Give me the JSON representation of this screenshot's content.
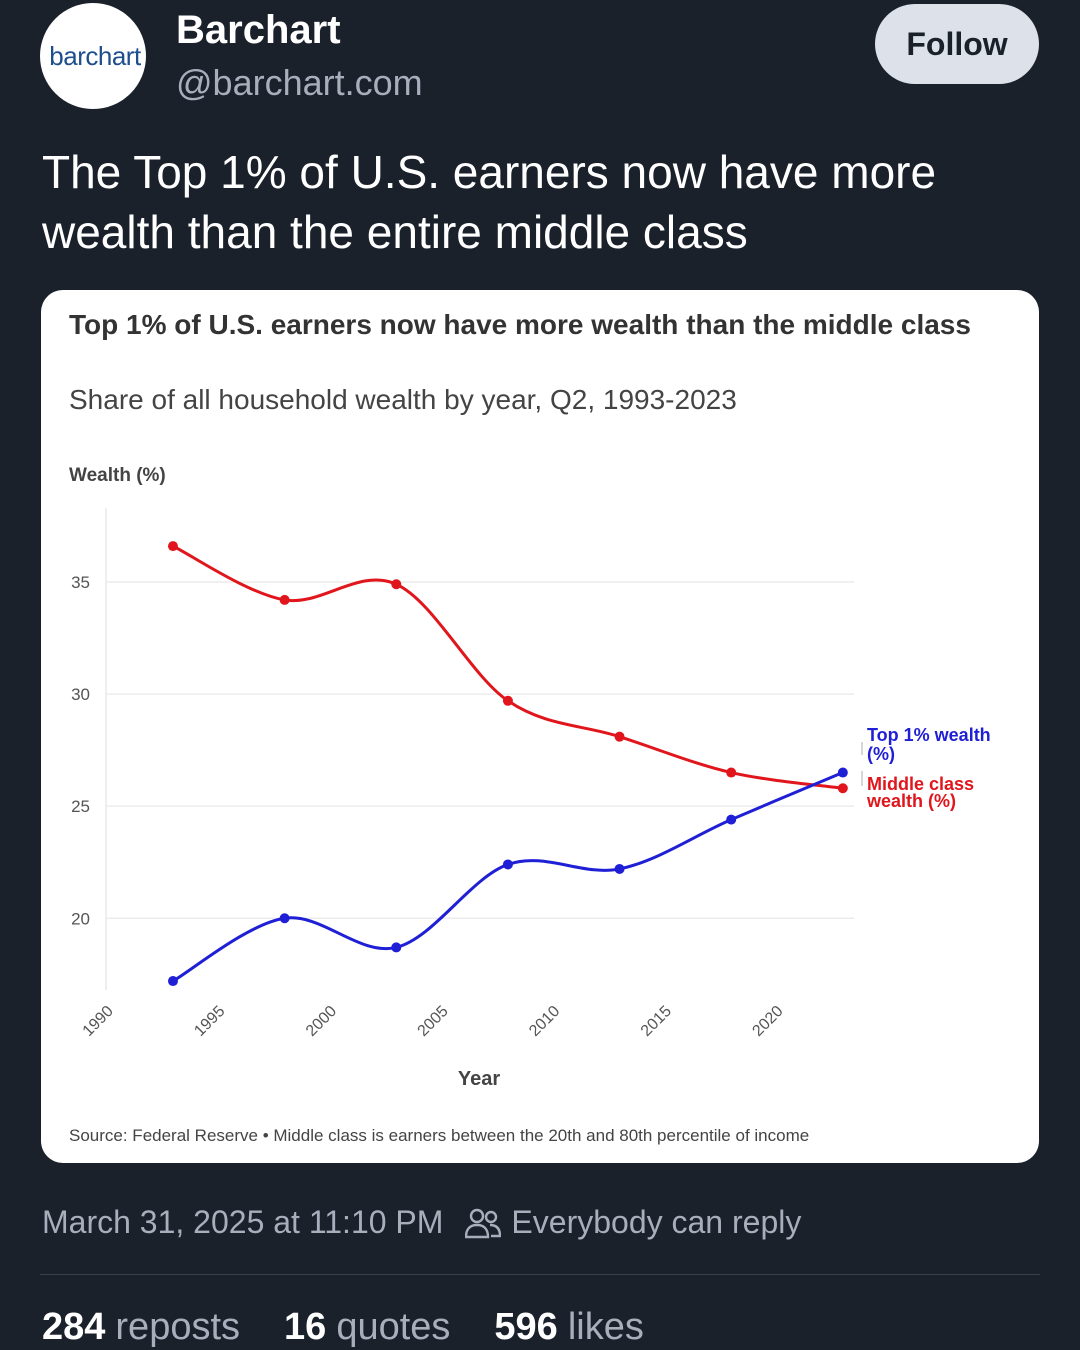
{
  "account": {
    "avatar_text": "barchart",
    "display_name": "Barchart",
    "handle": "@barchart.com",
    "follow_label": "Follow"
  },
  "post": {
    "text": "The Top 1% of U.S. earners now have more wealth than the entire middle class",
    "timestamp": "March 31, 2025 at 11:10 PM",
    "reply_setting": "Everybody can reply",
    "reply_icon": "people-icon"
  },
  "stats": {
    "reposts": {
      "count": "284",
      "label": "reposts"
    },
    "quotes": {
      "count": "16",
      "label": "quotes"
    },
    "likes": {
      "count": "596",
      "label": "likes"
    }
  },
  "chart_data": {
    "type": "line",
    "title": "Top 1% of U.S. earners now have more wealth than the middle class",
    "subtitle": "Share of all household wealth by year, Q2, 1993-2023",
    "ylabel": "Wealth (%)",
    "xlabel": "Year",
    "xlim": [
      1990,
      2023.5
    ],
    "ylim": [
      16.8,
      38.3
    ],
    "x_ticks": [
      "1990",
      "1995",
      "2000",
      "2005",
      "2010",
      "2015",
      "2020"
    ],
    "y_ticks": [
      "20",
      "25",
      "30",
      "35"
    ],
    "x": [
      1993,
      1998,
      2003,
      2008,
      2013,
      2018,
      2023
    ],
    "series": [
      {
        "name": "Middle class wealth (%)",
        "color": "#e0161c",
        "values": [
          36.6,
          34.2,
          34.9,
          29.7,
          28.1,
          26.5,
          25.8
        ]
      },
      {
        "name": "Top 1% wealth (%)",
        "color": "#1f1fd6",
        "values": [
          17.2,
          20.0,
          18.7,
          22.4,
          22.2,
          24.4,
          26.5
        ]
      }
    ],
    "label_lines": {
      "top1": [
        "Top 1% wealth",
        "(%)"
      ],
      "middle": [
        "Middle class",
        "wealth (%)"
      ]
    },
    "grid": true,
    "source": "Source: Federal Reserve • Middle class is earners between the 20th and 80th percentile of income"
  }
}
